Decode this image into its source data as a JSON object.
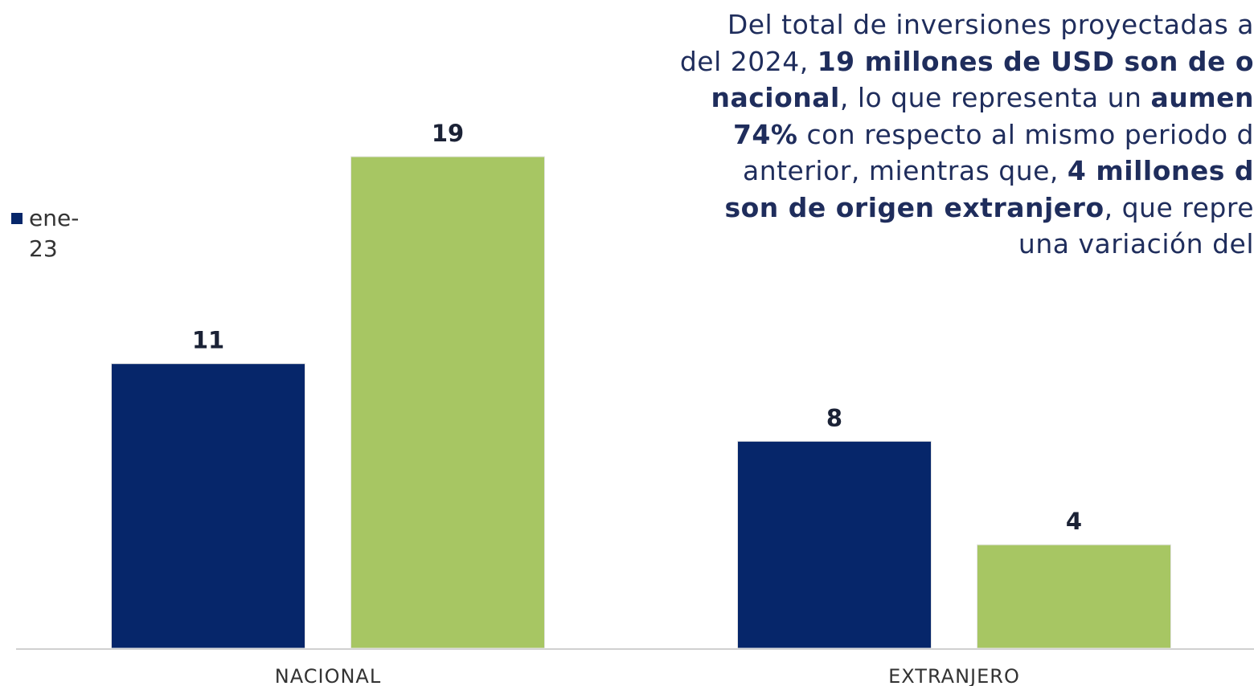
{
  "chart_data": {
    "type": "bar",
    "categories": [
      "NACIONAL",
      "EXTRANJERO"
    ],
    "series": [
      {
        "name": "ene-23",
        "color": "#06266a",
        "values": [
          11,
          8
        ]
      },
      {
        "color": "#a7c663",
        "values": [
          19,
          4
        ]
      }
    ],
    "annotation": [
      [
        {
          "text": "Del total de inversiones proyectadas a"
        }
      ],
      [
        {
          "text": "del 2024, "
        },
        {
          "text": "19 millones de USD son de o",
          "bold": true
        }
      ],
      [
        {
          "text": "nacional",
          "bold": true
        },
        {
          "text": ", lo que representa un "
        },
        {
          "text": "aumen",
          "bold": true
        }
      ],
      [
        {
          "text": "74%",
          "bold": true
        },
        {
          "text": " con respecto al mismo periodo d"
        }
      ],
      [
        {
          "text": "anterior, mientras que, "
        },
        {
          "text": "4 millones d",
          "bold": true
        }
      ],
      [
        {
          "text": "son de origen extranjero",
          "bold": true
        },
        {
          "text": ", que repre"
        }
      ],
      [
        {
          "text": "una variación del"
        }
      ]
    ]
  }
}
